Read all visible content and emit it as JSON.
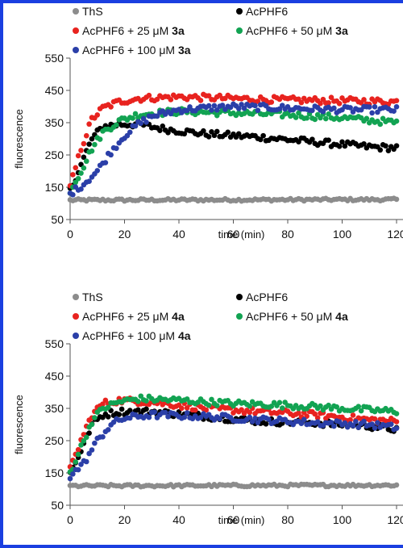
{
  "chart_data": [
    {
      "type": "scatter",
      "xlabel": "time (min)",
      "ylabel": "fluorescence",
      "xlim": [
        0,
        120
      ],
      "ylim": [
        50,
        550
      ],
      "xticks": [
        "0",
        "20",
        "40",
        "60",
        "80",
        "100",
        "120"
      ],
      "yticks": [
        "50",
        "150",
        "250",
        "350",
        "450",
        "550"
      ],
      "legend": [
        {
          "text": "ThS",
          "bold": "",
          "color": "#8c8c8c"
        },
        {
          "text": "AcPHF6",
          "bold": "",
          "color": "#000000"
        },
        {
          "text": "AcPHF6 + 25 μM ",
          "bold": "3a",
          "color": "#e8231f"
        },
        {
          "text": "AcPHF6 + 50 μM ",
          "bold": "3a",
          "color": "#12a352"
        },
        {
          "text": "AcPHF6 + 100 μM ",
          "bold": "3a",
          "color": "#2b3fa8"
        }
      ],
      "series": [
        {
          "name": "ThS",
          "color": "#8c8c8c",
          "points": [
            [
              0,
              110
            ],
            [
              120,
              112
            ]
          ]
        },
        {
          "name": "AcPHF6",
          "color": "#000000",
          "points": [
            [
              0,
              140
            ],
            [
              4,
              220
            ],
            [
              8,
              300
            ],
            [
              12,
              338
            ],
            [
              18,
              345
            ],
            [
              25,
              345
            ],
            [
              35,
              330
            ],
            [
              50,
              315
            ],
            [
              70,
              305
            ],
            [
              90,
              290
            ],
            [
              110,
              275
            ],
            [
              120,
              272
            ]
          ]
        },
        {
          "name": "AcPHF6 + 25 μM 3a",
          "color": "#e8231f",
          "points": [
            [
              0,
              150
            ],
            [
              4,
              270
            ],
            [
              8,
              360
            ],
            [
              12,
              395
            ],
            [
              18,
              415
            ],
            [
              25,
              425
            ],
            [
              40,
              430
            ],
            [
              60,
              425
            ],
            [
              80,
              420
            ],
            [
              100,
              418
            ],
            [
              120,
              415
            ]
          ]
        },
        {
          "name": "AcPHF6 + 50 μM 3a",
          "color": "#12a352",
          "points": [
            [
              0,
              140
            ],
            [
              4,
              200
            ],
            [
              8,
              270
            ],
            [
              12,
              320
            ],
            [
              18,
              355
            ],
            [
              25,
              375
            ],
            [
              40,
              385
            ],
            [
              60,
              380
            ],
            [
              80,
              375
            ],
            [
              100,
              365
            ],
            [
              120,
              350
            ]
          ]
        },
        {
          "name": "AcPHF6 + 100 μM 3a",
          "color": "#2b3fa8",
          "points": [
            [
              0,
              130
            ],
            [
              5,
              160
            ],
            [
              10,
              200
            ],
            [
              15,
              260
            ],
            [
              20,
              310
            ],
            [
              25,
              345
            ],
            [
              30,
              370
            ],
            [
              40,
              390
            ],
            [
              60,
              400
            ],
            [
              80,
              395
            ],
            [
              100,
              390
            ],
            [
              120,
              390
            ]
          ]
        }
      ]
    },
    {
      "type": "scatter",
      "xlabel": "time (min)",
      "ylabel": "fluorescence",
      "xlim": [
        0,
        120
      ],
      "ylim": [
        50,
        550
      ],
      "xticks": [
        "0",
        "20",
        "40",
        "60",
        "80",
        "100",
        "120"
      ],
      "yticks": [
        "50",
        "150",
        "250",
        "350",
        "450",
        "550"
      ],
      "legend": [
        {
          "text": "ThS",
          "bold": "",
          "color": "#8c8c8c"
        },
        {
          "text": "AcPHF6",
          "bold": "",
          "color": "#000000"
        },
        {
          "text": "AcPHF6 + 25 μM ",
          "bold": "4a",
          "color": "#e8231f"
        },
        {
          "text": "AcPHF6 + 50 μM ",
          "bold": "4a",
          "color": "#12a352"
        },
        {
          "text": "AcPHF6 + 100 μM ",
          "bold": "4a",
          "color": "#2b3fa8"
        }
      ],
      "series": [
        {
          "name": "ThS",
          "color": "#8c8c8c",
          "points": [
            [
              0,
              110
            ],
            [
              120,
              112
            ]
          ]
        },
        {
          "name": "AcPHF6",
          "color": "#000000",
          "points": [
            [
              0,
              150
            ],
            [
              4,
              220
            ],
            [
              8,
              300
            ],
            [
              12,
              330
            ],
            [
              18,
              340
            ],
            [
              30,
              340
            ],
            [
              50,
              325
            ],
            [
              70,
              310
            ],
            [
              90,
              305
            ],
            [
              110,
              295
            ],
            [
              120,
              285
            ]
          ]
        },
        {
          "name": "AcPHF6 + 25 μM 4a",
          "color": "#e8231f",
          "points": [
            [
              0,
              160
            ],
            [
              4,
              250
            ],
            [
              8,
              330
            ],
            [
              12,
              365
            ],
            [
              18,
              375
            ],
            [
              30,
              370
            ],
            [
              50,
              350
            ],
            [
              70,
              340
            ],
            [
              90,
              330
            ],
            [
              110,
              315
            ],
            [
              120,
              310
            ]
          ]
        },
        {
          "name": "AcPHF6 + 50 μM 4a",
          "color": "#12a352",
          "points": [
            [
              0,
              150
            ],
            [
              4,
              230
            ],
            [
              8,
              310
            ],
            [
              12,
              350
            ],
            [
              18,
              370
            ],
            [
              25,
              380
            ],
            [
              40,
              375
            ],
            [
              60,
              365
            ],
            [
              80,
              360
            ],
            [
              100,
              350
            ],
            [
              120,
              340
            ]
          ]
        },
        {
          "name": "AcPHF6 + 100 μM 4a",
          "color": "#2b3fa8",
          "points": [
            [
              0,
              140
            ],
            [
              5,
              180
            ],
            [
              10,
              250
            ],
            [
              15,
              300
            ],
            [
              20,
              320
            ],
            [
              30,
              330
            ],
            [
              50,
              325
            ],
            [
              70,
              315
            ],
            [
              90,
              305
            ],
            [
              110,
              300
            ],
            [
              120,
              290
            ]
          ]
        }
      ]
    }
  ]
}
